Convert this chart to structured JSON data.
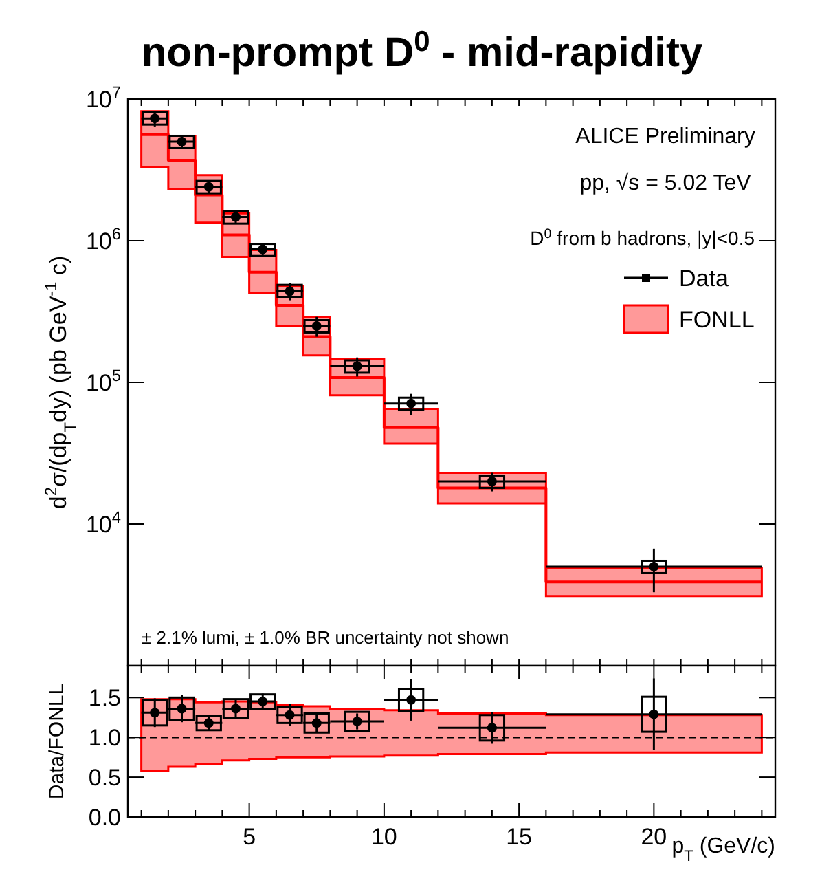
{
  "chart_data": [
    {
      "type": "scatter",
      "title": "non-prompt D$^{0}$ - mid-rapidity",
      "ylabel": "d$^{2}$σ/(dp$_{T}$dy) (pb GeV$^{-1}$ c)",
      "log": "y",
      "legend": "top right",
      "tick_labels": "y",
      "xlim": [
        0.5,
        24.5
      ],
      "xticks": [
        {
          "value": 1,
          "label": null
        },
        {
          "value": 2,
          "label": null
        },
        {
          "value": 3,
          "label": null
        },
        {
          "value": 4,
          "label": null
        },
        {
          "value": 5,
          "label": null
        },
        {
          "value": 6,
          "label": null
        },
        {
          "value": 7,
          "label": null
        },
        {
          "value": 8,
          "label": null
        },
        {
          "value": 9,
          "label": null
        },
        {
          "value": 10,
          "label": null
        },
        {
          "value": 11,
          "label": null
        },
        {
          "value": 12,
          "label": null
        },
        {
          "value": 13,
          "label": null
        },
        {
          "value": 14,
          "label": null
        },
        {
          "value": 15,
          "label": null
        },
        {
          "value": 16,
          "label": null
        },
        {
          "value": 17,
          "label": null
        },
        {
          "value": 18,
          "label": null
        },
        {
          "value": 19,
          "label": null
        },
        {
          "value": 20,
          "label": null
        },
        {
          "value": 21,
          "label": null
        },
        {
          "value": 22,
          "label": null
        },
        {
          "value": 23,
          "label": null
        },
        {
          "value": 24,
          "label": null
        }
      ],
      "ylim": [
        1000,
        10000000
      ],
      "yticks": [
        {
          "value": 10000,
          "label": "10$^{4}$"
        },
        {
          "value": 100000,
          "label": "10$^{5}$"
        },
        {
          "value": 1000000,
          "label": "10$^{6}$"
        },
        {
          "value": 10000000,
          "label": "10$^{7}$"
        }
      ],
      "annotations": [
        "ALICE Preliminary",
        "pp, √s = 5.02 TeV",
        "D$^{0}$ from b hadrons, |y|<0.5",
        "± 2.1% lumi, ± 1.0% BR uncertainty not shown"
      ],
      "series": [
        {
          "name": "FONLL",
          "type": "step",
          "color": "#ff0000",
          "x": [
            1,
            2,
            3,
            4,
            5,
            6,
            7,
            8,
            10,
            12,
            16,
            24
          ],
          "values": [
            5600000,
            3700000,
            2100000,
            1100000,
            600000,
            350000,
            210000,
            108000,
            48000,
            18000,
            3900,
            3900
          ],
          "lower": [
            3300000,
            2300000,
            1340000,
            770000,
            430000,
            250000,
            155000,
            81000,
            37000,
            14000,
            3100,
            3100
          ],
          "upper": [
            8200000,
            5500000,
            2900000,
            1560000,
            860000,
            480000,
            290000,
            147000,
            65000,
            23000,
            4900,
            4900
          ]
        },
        {
          "type": "bar",
          "color": "#000000",
          "x": [
            1.5,
            2.5,
            3.5,
            4.5,
            5.5,
            6.5,
            7.5,
            9,
            11,
            14,
            20
          ],
          "base": [
            6600000,
            4500000,
            2160000,
            1320000,
            780000,
            400000,
            225000,
            117000,
            64000,
            18000,
            4500
          ],
          "values": [
            1460000,
            1000000,
            480000,
            290000,
            170000,
            88000,
            50000,
            26000,
            14000,
            4000,
            1000
          ]
        },
        {
          "name": "Data",
          "color": "#000000",
          "marker": "circle",
          "x": [
            1.5,
            2.5,
            3.5,
            4.5,
            5.5,
            6.5,
            7.5,
            9,
            11,
            14,
            20
          ],
          "xerrors": [
            0.5,
            0.5,
            0.5,
            0.5,
            0.5,
            0.5,
            0.5,
            1,
            1,
            2,
            4
          ],
          "values": [
            7300000,
            5000000,
            2400000,
            1470000,
            870000,
            440000,
            250000,
            130000,
            71000,
            20000,
            5000
          ],
          "errors": [
            900000,
            500000,
            250000,
            150000,
            80000,
            60000,
            40000,
            20000,
            12000,
            3000,
            [
              3300,
              6700
            ]
          ]
        }
      ]
    },
    {
      "type": "scatter",
      "ylabel": "Data/FONLL",
      "xlabel": "p$_{T}$ (GeV/c)",
      "xlim": [
        0.5,
        24.5
      ],
      "xticks": [
        {
          "value": 1,
          "label": null
        },
        {
          "value": 2,
          "label": null
        },
        {
          "value": 3,
          "label": null
        },
        {
          "value": 4,
          "label": null
        },
        5,
        {
          "value": 6,
          "label": null
        },
        {
          "value": 7,
          "label": null
        },
        {
          "value": 8,
          "label": null
        },
        {
          "value": 9,
          "label": null
        },
        10,
        {
          "value": 11,
          "label": null
        },
        {
          "value": 12,
          "label": null
        },
        {
          "value": 13,
          "label": null
        },
        {
          "value": 14,
          "label": null
        },
        15,
        {
          "value": 16,
          "label": null
        },
        {
          "value": 17,
          "label": null
        },
        {
          "value": 18,
          "label": null
        },
        {
          "value": 19,
          "label": null
        },
        20,
        {
          "value": 21,
          "label": null
        },
        {
          "value": 22,
          "label": null
        },
        {
          "value": 23,
          "label": null
        },
        {
          "value": 24,
          "label": null
        }
      ],
      "ylim": [
        0,
        1.9
      ],
      "yticks": [
        {
          "value": 0,
          "label": "0.0"
        },
        {
          "value": 0.5,
          "label": "0.5"
        },
        {
          "value": 1,
          "label": "1.0"
        },
        {
          "value": 1.5,
          "label": "1.5"
        }
      ],
      "ref_lines": [
        {
          "axis": "y",
          "value": 1,
          "line_style": "dashed",
          "color": "#000000"
        }
      ],
      "series": [
        {
          "type": "step",
          "color": "#ff0000",
          "x": [
            1,
            2,
            3,
            4,
            5,
            6,
            7,
            8,
            10,
            12,
            16,
            24
          ],
          "values": [
            null,
            null,
            null,
            null,
            null,
            null,
            null,
            null,
            null,
            null,
            null,
            null
          ],
          "lower": [
            0.58,
            0.63,
            0.67,
            0.71,
            0.73,
            0.75,
            0.75,
            0.76,
            0.77,
            0.79,
            0.81,
            0.81
          ],
          "upper": [
            1.48,
            1.48,
            1.44,
            1.45,
            1.44,
            1.41,
            1.39,
            1.36,
            1.34,
            1.3,
            1.28,
            1.28
          ]
        },
        {
          "type": "bar",
          "color": "#000000",
          "x": [
            1.5,
            2.5,
            3.5,
            4.5,
            5.5,
            6.5,
            7.5,
            9,
            11,
            14,
            20
          ],
          "base": [
            1.15,
            1.22,
            1.09,
            1.24,
            1.36,
            1.18,
            1.06,
            1.08,
            1.33,
            0.96,
            1.07
          ],
          "values": [
            0.32,
            0.28,
            0.18,
            0.24,
            0.18,
            0.2,
            0.24,
            0.24,
            0.28,
            0.32,
            0.44
          ]
        },
        {
          "color": "#000000",
          "marker": "circle",
          "x": [
            1.5,
            2.5,
            3.5,
            4.5,
            5.5,
            6.5,
            7.5,
            9,
            11,
            14,
            20
          ],
          "xerrors": [
            0.5,
            0.5,
            0.5,
            0.5,
            0.5,
            0.5,
            0.5,
            1,
            1,
            2,
            4
          ],
          "values": [
            1.31,
            1.36,
            1.18,
            1.36,
            1.45,
            1.28,
            1.18,
            1.2,
            1.47,
            1.12,
            1.29
          ],
          "errors": [
            0.18,
            0.17,
            0.1,
            0.12,
            0.1,
            0.14,
            0.12,
            0.1,
            0.26,
            0.2,
            0.45
          ]
        }
      ]
    }
  ]
}
